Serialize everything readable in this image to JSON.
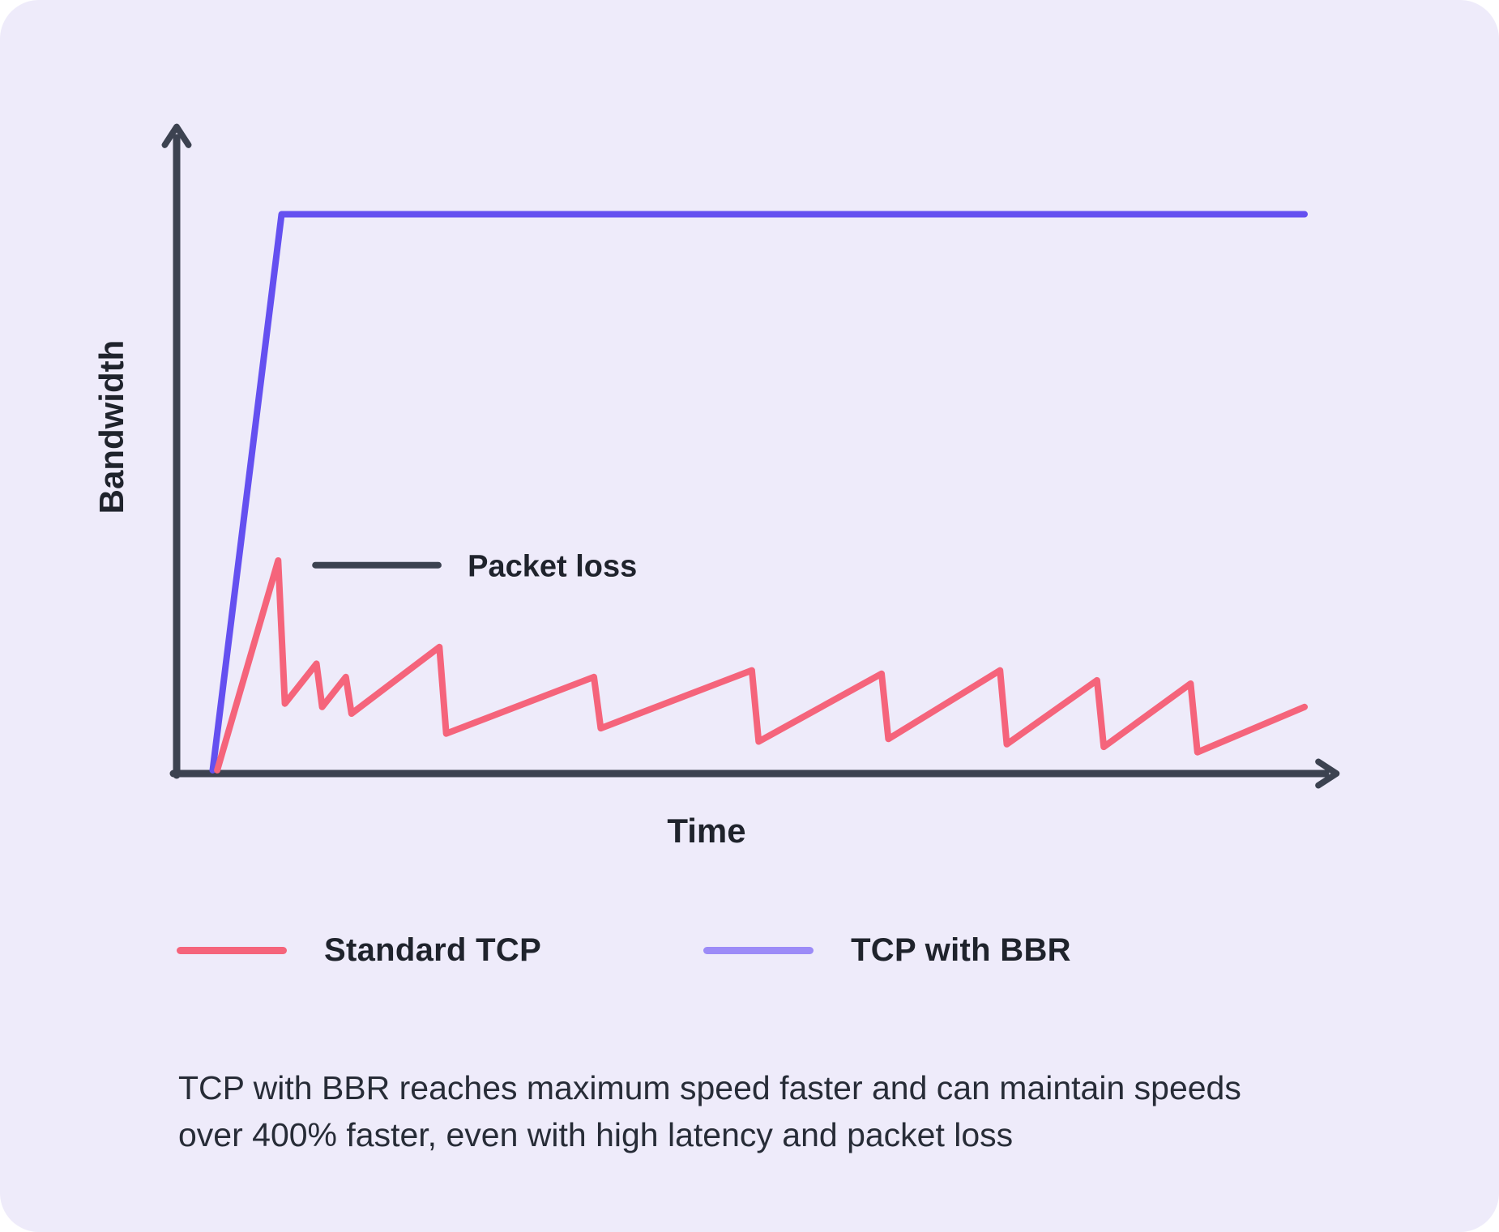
{
  "card": {
    "background": "#EEEBFA",
    "page_background": "#FFFFFF"
  },
  "chart_data": {
    "type": "line",
    "title": "",
    "xlabel": "Time",
    "ylabel": "Bandwidth",
    "x_range": [
      0,
      100
    ],
    "y_range": [
      0,
      100
    ],
    "grid": false,
    "legend_position": "bottom",
    "axis_color": "#3C4250",
    "series": [
      {
        "name": "TCP with BBR",
        "color": "#6450F0",
        "points": [
          [
            3.2,
            0.5
          ],
          [
            9.3,
            84
          ],
          [
            100,
            84
          ]
        ]
      },
      {
        "name": "Standard TCP",
        "color": "#F5647B",
        "points": [
          [
            3.6,
            0.5
          ],
          [
            9.0,
            32
          ],
          [
            9.6,
            10.5
          ],
          [
            12.4,
            16.5
          ],
          [
            12.9,
            10.0
          ],
          [
            15.0,
            14.5
          ],
          [
            15.5,
            9.0
          ],
          [
            23.3,
            19.0
          ],
          [
            23.9,
            6.0
          ],
          [
            37.0,
            14.5
          ],
          [
            37.6,
            6.8
          ],
          [
            51.0,
            15.5
          ],
          [
            51.6,
            4.8
          ],
          [
            62.5,
            15.0
          ],
          [
            63.1,
            5.2
          ],
          [
            73.0,
            15.5
          ],
          [
            73.6,
            4.4
          ],
          [
            81.6,
            14.0
          ],
          [
            82.2,
            4.0
          ],
          [
            89.9,
            13.5
          ],
          [
            90.5,
            3.2
          ],
          [
            100,
            10.0
          ]
        ]
      }
    ],
    "annotation": {
      "label": "Packet loss",
      "line": {
        "x1": 12.3,
        "x2": 23.2,
        "y": 31.3
      },
      "label_x": 25.8,
      "color": "#3C4250"
    }
  },
  "legend": {
    "items": [
      {
        "label": "Standard TCP",
        "color": "#F5647B"
      },
      {
        "label": "TCP with BBR",
        "color": "#9C8BF7"
      }
    ]
  },
  "caption": {
    "text": "TCP with BBR reaches maximum speed faster and can maintain speeds over 400% faster, even with high latency and packet loss"
  }
}
